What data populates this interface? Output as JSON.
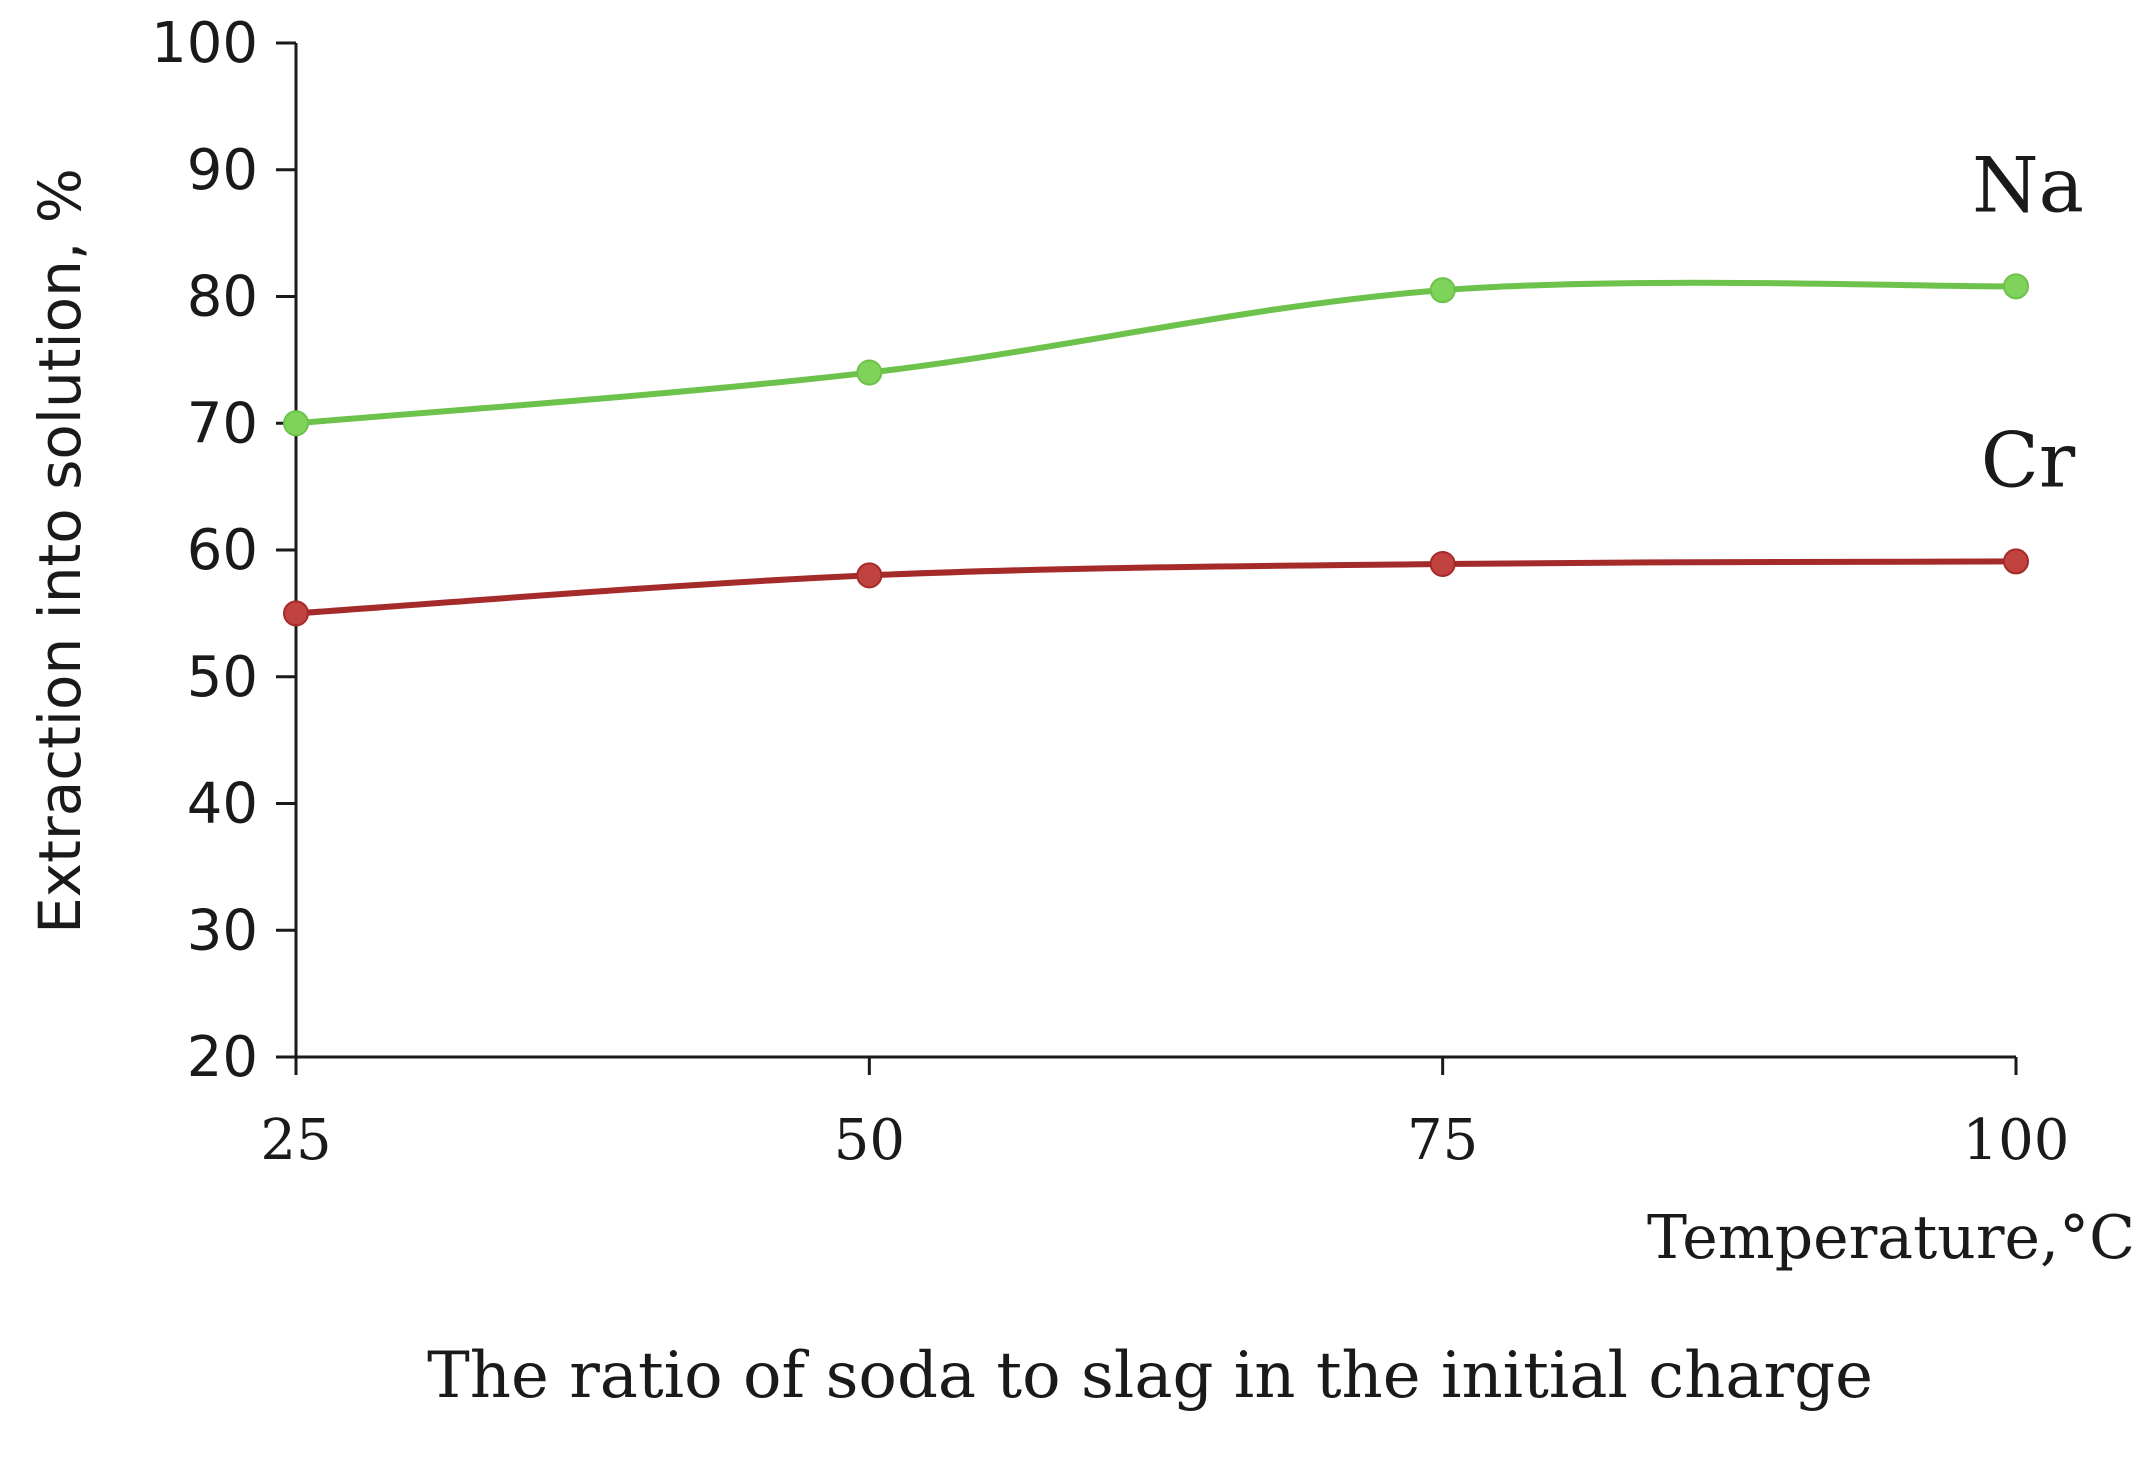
{
  "chart_data": {
    "type": "line",
    "title": "",
    "caption": "The ratio of soda to slag in the initial charge",
    "xlabel": "Temperature,°C",
    "ylabel": "Extraction into solution, %",
    "x": [
      25,
      50,
      75,
      100
    ],
    "xlim": [
      25,
      100
    ],
    "ylim": [
      20,
      100
    ],
    "x_ticks": [
      "25",
      "50",
      "75",
      "100"
    ],
    "y_ticks": [
      "20",
      "30",
      "40",
      "50",
      "60",
      "70",
      "80",
      "90",
      "100"
    ],
    "grid": false,
    "series": [
      {
        "name": "Na",
        "values": [
          70,
          74,
          80.5,
          80.8
        ],
        "color": "#6cc24a",
        "marker_color": "#7fd35a"
      },
      {
        "name": "Cr",
        "values": [
          55,
          58,
          58.9,
          59.1
        ],
        "color": "#a52a2a",
        "marker_color": "#c0433f"
      }
    ]
  },
  "colors": {
    "axis": "#1a1a1a"
  }
}
